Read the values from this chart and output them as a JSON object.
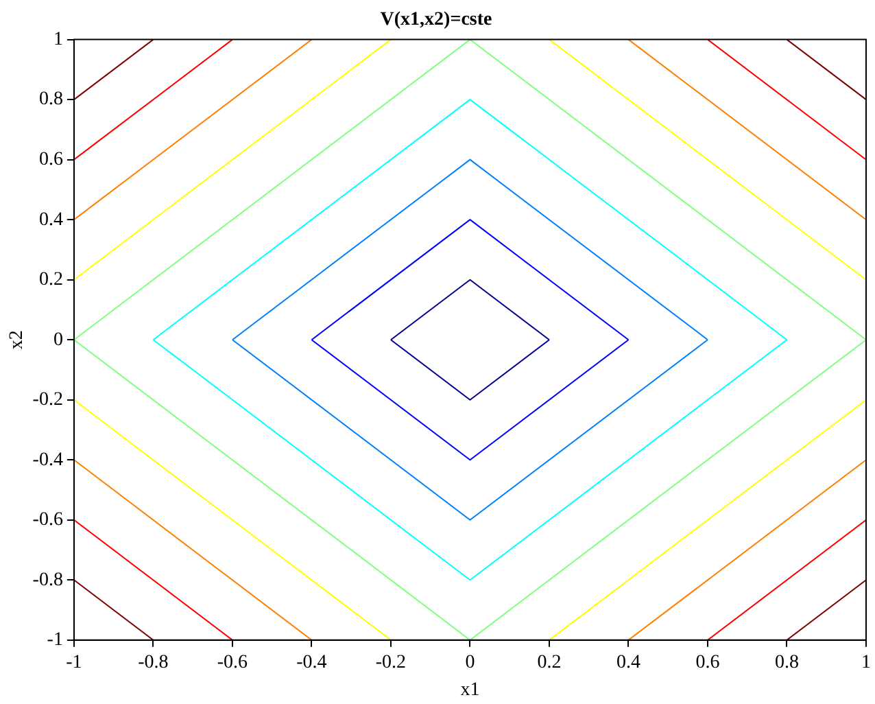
{
  "chart_data": {
    "type": "line",
    "title": "V(x1,x2)=cste",
    "xlabel": "x1",
    "ylabel": "x2",
    "marker": "none",
    "line_style": "solid",
    "grid": false,
    "legend": false,
    "xlim": [
      -1,
      1
    ],
    "ylim": [
      -1,
      1
    ],
    "xticks": [
      -1,
      -0.8,
      -0.6,
      -0.4,
      -0.2,
      0,
      0.2,
      0.4,
      0.6,
      0.8,
      1
    ],
    "yticks": [
      -1,
      -0.8,
      -0.6,
      -0.4,
      -0.2,
      0,
      0.2,
      0.4,
      0.6,
      0.8,
      1
    ],
    "series": [
      {
        "color": "#00008f",
        "x": [
          -0.2,
          0,
          0.2
        ],
        "values": [
          0,
          0.2,
          0
        ]
      },
      {
        "color": "#00008f",
        "x": [
          -0.2,
          0,
          0.2
        ],
        "values": [
          0,
          -0.2,
          0
        ]
      },
      {
        "color": "#0000ff",
        "x": [
          -0.4,
          0,
          0.4
        ],
        "values": [
          0,
          0.4,
          0
        ]
      },
      {
        "color": "#0000ff",
        "x": [
          -0.4,
          0,
          0.4
        ],
        "values": [
          0,
          -0.4,
          0
        ]
      },
      {
        "color": "#0080ff",
        "x": [
          -0.6,
          0,
          0.6
        ],
        "values": [
          0,
          0.6,
          0
        ]
      },
      {
        "color": "#0080ff",
        "x": [
          -0.6,
          0,
          0.6
        ],
        "values": [
          0,
          -0.6,
          0
        ]
      },
      {
        "color": "#00ffff",
        "x": [
          -0.8,
          0,
          0.8
        ],
        "values": [
          0,
          0.8,
          0
        ]
      },
      {
        "color": "#00ffff",
        "x": [
          -0.8,
          0,
          0.8
        ],
        "values": [
          0,
          -0.8,
          0
        ]
      },
      {
        "color": "#80ff80",
        "x": [
          -1,
          0,
          1
        ],
        "values": [
          0,
          1,
          0
        ]
      },
      {
        "color": "#80ff80",
        "x": [
          -1,
          0,
          1
        ],
        "values": [
          0,
          -1,
          0
        ]
      },
      {
        "color": "#ffff00",
        "x": [
          -1,
          -0.2
        ],
        "values": [
          0.2,
          1
        ]
      },
      {
        "color": "#ffff00",
        "x": [
          0.2,
          1
        ],
        "values": [
          1,
          0.2
        ]
      },
      {
        "color": "#ffff00",
        "x": [
          0.2,
          1
        ],
        "values": [
          -1,
          -0.2
        ]
      },
      {
        "color": "#ffff00",
        "x": [
          -1,
          -0.2
        ],
        "values": [
          -0.2,
          -1
        ]
      },
      {
        "color": "#ff8000",
        "x": [
          -1,
          -0.4
        ],
        "values": [
          0.4,
          1
        ]
      },
      {
        "color": "#ff8000",
        "x": [
          0.4,
          1
        ],
        "values": [
          1,
          0.4
        ]
      },
      {
        "color": "#ff8000",
        "x": [
          0.4,
          1
        ],
        "values": [
          -1,
          -0.4
        ]
      },
      {
        "color": "#ff8000",
        "x": [
          -1,
          -0.4
        ],
        "values": [
          -0.4,
          -1
        ]
      },
      {
        "color": "#ff0000",
        "x": [
          -1,
          -0.6
        ],
        "values": [
          0.6,
          1
        ]
      },
      {
        "color": "#ff0000",
        "x": [
          0.6,
          1
        ],
        "values": [
          1,
          0.6
        ]
      },
      {
        "color": "#ff0000",
        "x": [
          0.6,
          1
        ],
        "values": [
          -1,
          -0.6
        ]
      },
      {
        "color": "#ff0000",
        "x": [
          -1,
          -0.6
        ],
        "values": [
          -0.6,
          -1
        ]
      },
      {
        "color": "#800000",
        "x": [
          -1,
          -0.8
        ],
        "values": [
          0.8,
          1
        ]
      },
      {
        "color": "#800000",
        "x": [
          0.8,
          1
        ],
        "values": [
          1,
          0.8
        ]
      },
      {
        "color": "#800000",
        "x": [
          0.8,
          1
        ],
        "values": [
          -1,
          -0.8
        ]
      },
      {
        "color": "#800000",
        "x": [
          -1,
          -0.8
        ],
        "values": [
          -0.8,
          -1
        ]
      }
    ]
  }
}
